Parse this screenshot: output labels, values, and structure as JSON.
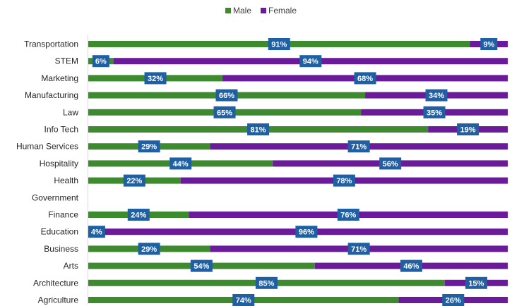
{
  "chart_data": {
    "type": "bar",
    "orientation": "horizontal",
    "stacked": true,
    "percent_stacked": true,
    "title": "",
    "xlabel": "",
    "ylabel": "",
    "xlim": [
      0,
      100
    ],
    "grid": false,
    "legend_position": "top",
    "categories": [
      "Transportation",
      "STEM",
      "Marketing",
      "Manufacturing",
      "Law",
      "Info Tech",
      "Human Services",
      "Hospitality",
      "Health",
      "Government",
      "Finance",
      "Education",
      "Business",
      "Arts",
      "Architecture",
      "Agriculture"
    ],
    "series": [
      {
        "name": "Male",
        "color": "#3d8b2e",
        "values": [
          91,
          6,
          32,
          66,
          65,
          81,
          29,
          44,
          22,
          null,
          24,
          4,
          29,
          54,
          85,
          74
        ],
        "labels": [
          "91%",
          "6%",
          "32%",
          "66%",
          "65%",
          "81%",
          "29%",
          "44%",
          "22%",
          "",
          "24%",
          "4%",
          "29%",
          "54%",
          "85%",
          "74%"
        ]
      },
      {
        "name": "Female",
        "color": "#6a1b9a",
        "values": [
          9,
          94,
          68,
          34,
          35,
          19,
          71,
          56,
          78,
          null,
          76,
          96,
          71,
          46,
          15,
          26
        ],
        "labels": [
          "9%",
          "94%",
          "68%",
          "34%",
          "35%",
          "19%",
          "71%",
          "56%",
          "78%",
          "",
          "76%",
          "96%",
          "71%",
          "46%",
          "15%",
          "26%"
        ]
      }
    ],
    "label_box_color": "#1f5fa3"
  }
}
